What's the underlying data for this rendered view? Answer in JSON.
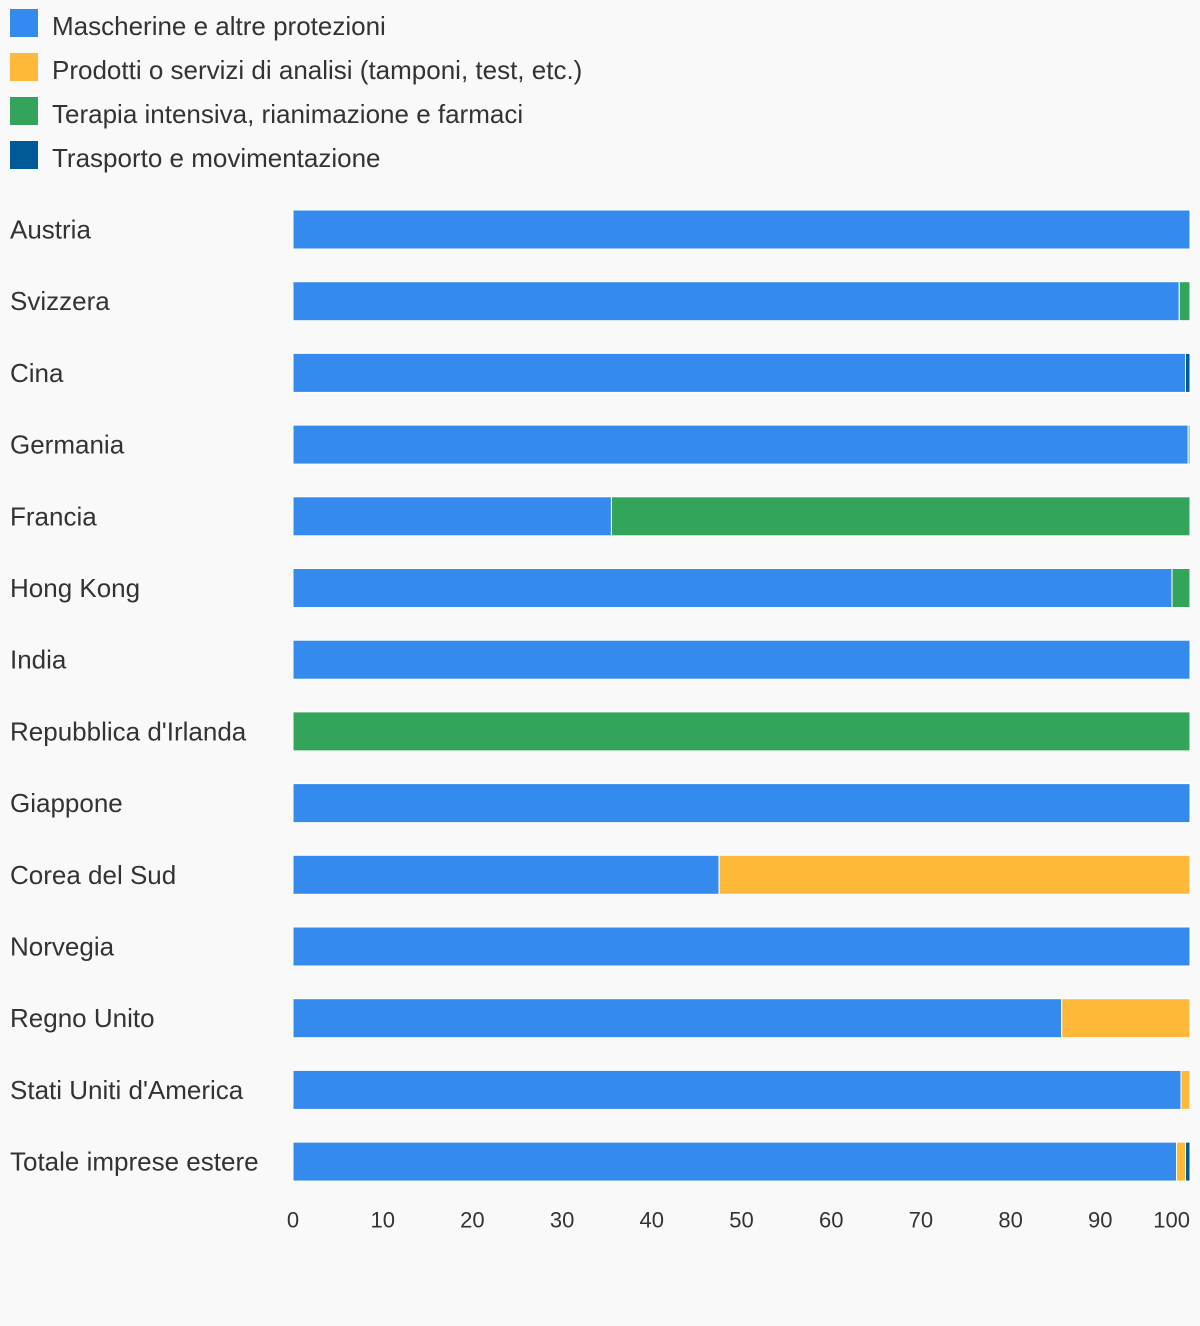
{
  "chart_data": {
    "type": "bar",
    "orientation": "horizontal",
    "stacked": true,
    "title": "",
    "xlabel": "",
    "ylabel": "",
    "xlim": [
      0,
      100
    ],
    "xticks": [
      "0",
      "10",
      "20",
      "30",
      "40",
      "50",
      "60",
      "70",
      "80",
      "90",
      "100"
    ],
    "grid": false,
    "legend_position": "top-left",
    "categories": [
      "Austria",
      "Svizzera",
      "Cina",
      "Germania",
      "Francia",
      "Hong Kong",
      "India",
      "Repubblica d'Irlanda",
      "Giappone",
      "Corea del Sud",
      "Norvegia",
      "Regno Unito",
      "Stati Uniti d'America",
      "Totale imprese estere"
    ],
    "series": [
      {
        "name": "Mascherine e altre protezioni",
        "color": "#348bed",
        "values": [
          100,
          98.8,
          99.5,
          99.8,
          35.5,
          98,
          100,
          0,
          100,
          47.5,
          100,
          85.7,
          99,
          98.5
        ]
      },
      {
        "name": "Prodotti o servizi di analisi (tamponi, test, etc.)",
        "color": "#ffb93a",
        "values": [
          0,
          0,
          0,
          0,
          0,
          0,
          0,
          0,
          0,
          52.5,
          0,
          14.3,
          1,
          1
        ]
      },
      {
        "name": "Terapia intensiva, rianimazione e farmaci",
        "color": "#33a55a",
        "values": [
          0,
          1.2,
          0,
          0.2,
          64.5,
          2,
          0,
          100,
          0,
          0,
          0,
          0,
          0,
          0
        ]
      },
      {
        "name": "Trasporto e movimentazione",
        "color": "#005a98",
        "values": [
          0,
          0,
          0.5,
          0,
          0,
          0,
          0,
          0,
          0,
          0,
          0,
          0,
          0,
          0.5
        ]
      }
    ]
  }
}
